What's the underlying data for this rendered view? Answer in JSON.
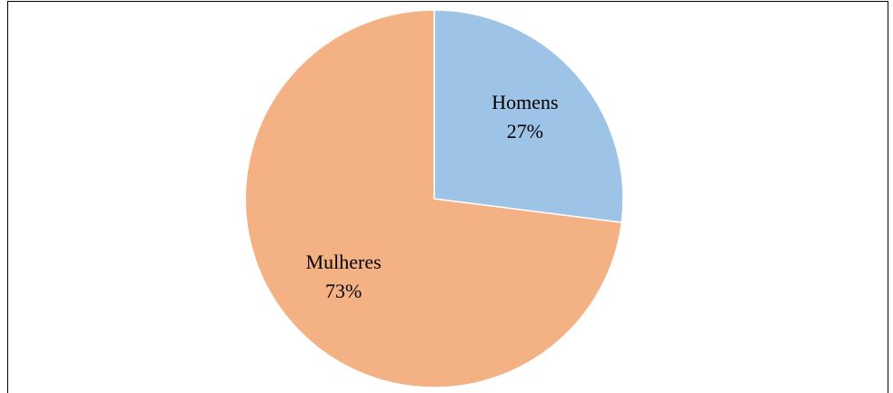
{
  "chart_data": {
    "type": "pie",
    "categories": [
      "Homens",
      "Mulheres"
    ],
    "values": [
      27,
      73
    ],
    "value_labels": [
      "27%",
      "73%"
    ],
    "colors": [
      "#9dc3e6",
      "#f4b183"
    ]
  }
}
